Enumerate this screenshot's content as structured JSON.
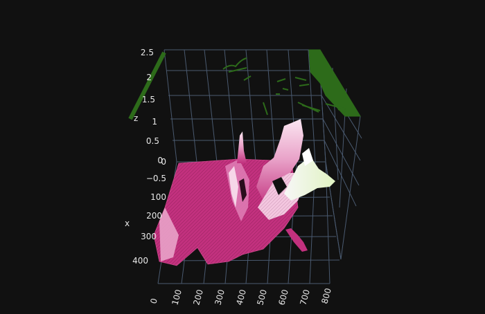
{
  "chart_data": {
    "type": "surface",
    "title": "",
    "background_color": "#111111",
    "grid": true,
    "colorscale": "PiYG",
    "projection_color": "#2d6b1a",
    "axes": {
      "x": {
        "label": "x",
        "ticks": [
          "0",
          "100",
          "200",
          "300",
          "400"
        ],
        "range": [
          0,
          450
        ]
      },
      "y": {
        "label": "",
        "ticks": [
          "0",
          "100",
          "200",
          "300",
          "400",
          "500",
          "600",
          "700",
          "800"
        ],
        "range": [
          0,
          830
        ]
      },
      "z": {
        "label": "z",
        "ticks": [
          "−0.5",
          "0",
          "0.5",
          "1",
          "1.5",
          "2",
          "2.5"
        ],
        "range": [
          -0.5,
          2.5
        ]
      }
    },
    "surface_summary": {
      "z_min": -0.5,
      "z_max": 2.6,
      "shape": "mostly flat base near z≈0 with sharp peaks toward the back (high y), plus a green-tinted plateau at the far right"
    }
  }
}
